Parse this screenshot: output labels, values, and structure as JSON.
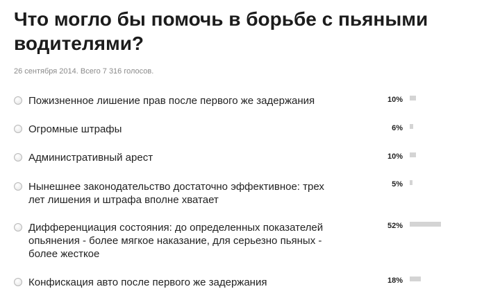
{
  "poll": {
    "title": "Что могло бы помочь в борьбе с пьяными водителями?",
    "meta": "26 сентября 2014. Всего 7 316 голосов.",
    "options": [
      {
        "label": "Пожизненное лишение прав после первого же задержания",
        "percent_label": "10%",
        "percent": 10
      },
      {
        "label": "Огромные штрафы",
        "percent_label": "6%",
        "percent": 6
      },
      {
        "label": "Административный арест",
        "percent_label": "10%",
        "percent": 10
      },
      {
        "label": "Нынешнее законодательство достаточно эффективное: трех лет лишения и штрафа вполне хватает",
        "percent_label": "5%",
        "percent": 5
      },
      {
        "label": "Дифференциация состояния: до определенных показателей опьянения - более мягкое наказание, для серьезно пьяных - более жесткое",
        "percent_label": "52%",
        "percent": 52
      },
      {
        "label": "Конфискация авто после первого же задержания",
        "percent_label": "18%",
        "percent": 18
      }
    ]
  }
}
